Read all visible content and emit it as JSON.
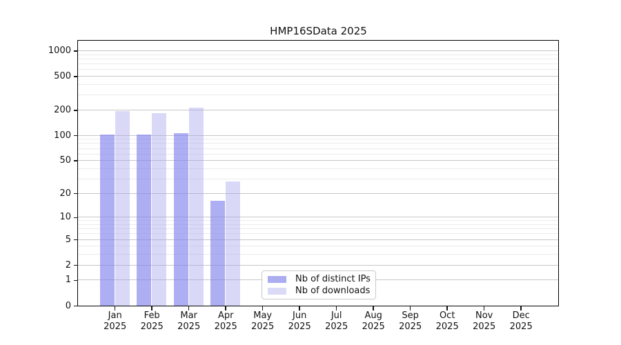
{
  "figure": {
    "title": "HMP16SData 2025"
  },
  "chart_data": {
    "type": "bar",
    "title": "HMP16SData 2025",
    "scale": "log10(1+y)",
    "grid": true,
    "legend_position": "inside-bottom-center",
    "categories": [
      {
        "month": "Jan",
        "year": "2025"
      },
      {
        "month": "Feb",
        "year": "2025"
      },
      {
        "month": "Mar",
        "year": "2025"
      },
      {
        "month": "Apr",
        "year": "2025"
      },
      {
        "month": "May",
        "year": "2025"
      },
      {
        "month": "Jun",
        "year": "2025"
      },
      {
        "month": "Jul",
        "year": "2025"
      },
      {
        "month": "Aug",
        "year": "2025"
      },
      {
        "month": "Sep",
        "year": "2025"
      },
      {
        "month": "Oct",
        "year": "2025"
      },
      {
        "month": "Nov",
        "year": "2025"
      },
      {
        "month": "Dec",
        "year": "2025"
      }
    ],
    "series": [
      {
        "name": "Nb of distinct IPs",
        "color": "#acacf0",
        "fill": "rgba(130,130,235,0.65)",
        "values": [
          102,
          102,
          107,
          16,
          0,
          0,
          0,
          0,
          0,
          0,
          0,
          0
        ]
      },
      {
        "name": "Nb of downloads",
        "color": "#dbdbf7",
        "fill": "rgba(160,160,235,0.4)",
        "values": [
          193,
          183,
          215,
          28,
          0,
          0,
          0,
          0,
          0,
          0,
          0,
          0
        ]
      }
    ],
    "yticks": [
      0,
      1,
      2,
      5,
      10,
      20,
      50,
      100,
      200,
      500,
      1000
    ],
    "minor_yticks": [
      3,
      4,
      6,
      7,
      8,
      9,
      30,
      40,
      60,
      70,
      80,
      90,
      300,
      400,
      600,
      700,
      800,
      900
    ],
    "ylim": [
      0,
      1300
    ],
    "xlabel": "",
    "ylabel": "",
    "colors": {
      "major_grid": "#c6c6c6",
      "minor_grid": "#ebebeb",
      "axis": "#000000"
    }
  }
}
